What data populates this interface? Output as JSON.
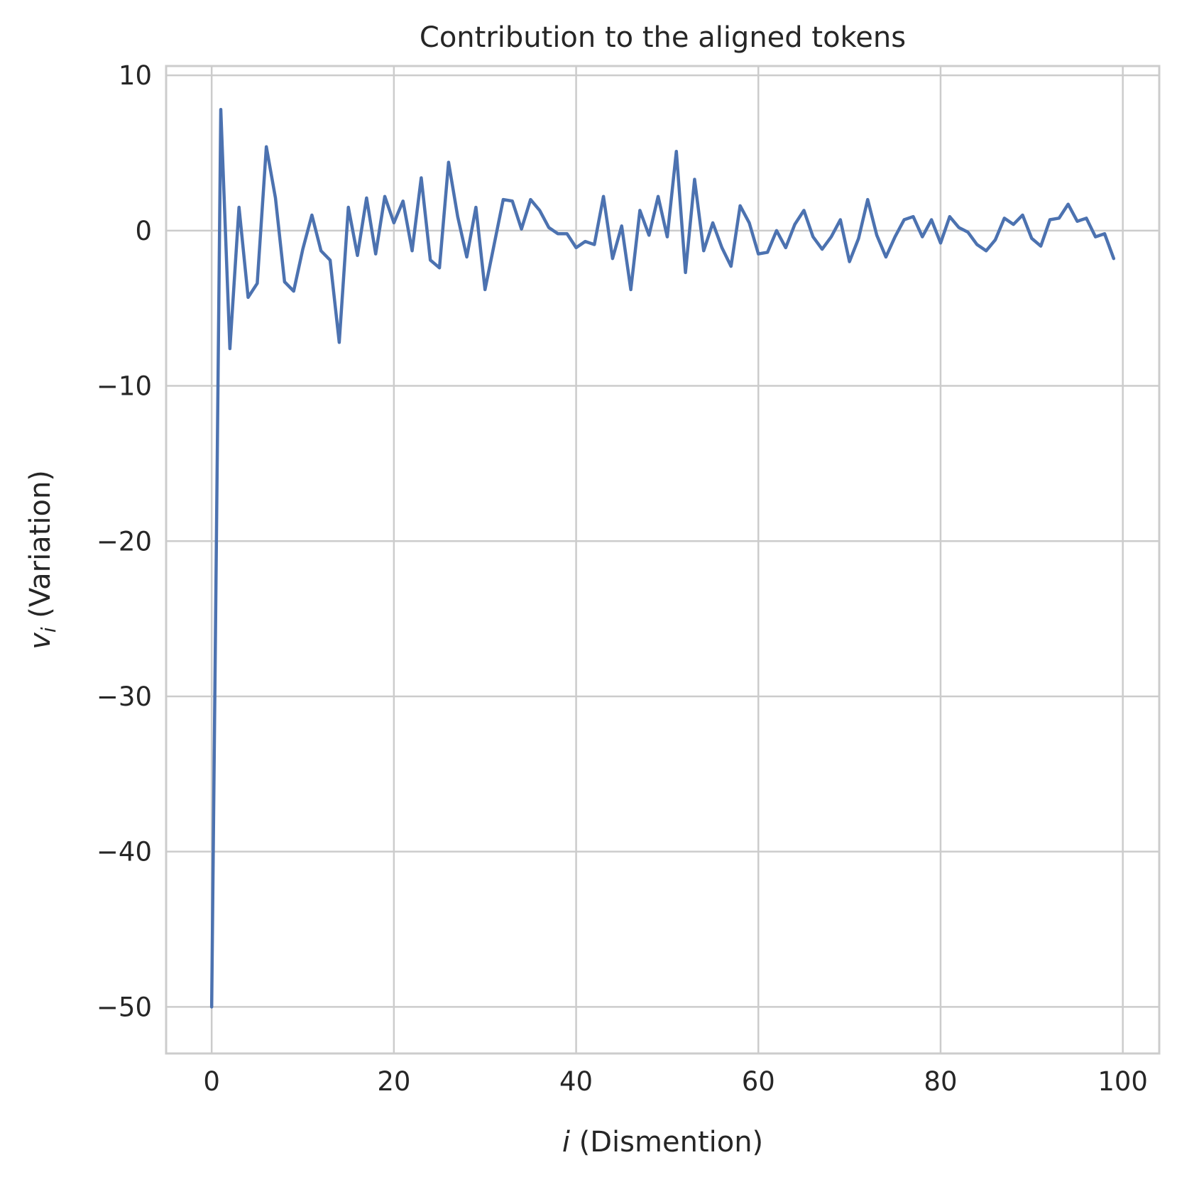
{
  "chart_data": {
    "type": "line",
    "title": "Contribution to the aligned tokens",
    "xlabel_var": "i",
    "xlabel_text": " (Dismention)",
    "ylabel_var": "v",
    "ylabel_sub": "i",
    "ylabel_text": " (Variation)",
    "xlim": [
      -5,
      104
    ],
    "ylim": [
      -53,
      10.6
    ],
    "xticks": [
      0,
      20,
      40,
      60,
      80,
      100
    ],
    "xtick_labels": [
      "0",
      "20",
      "40",
      "60",
      "80",
      "100"
    ],
    "yticks": [
      10,
      0,
      -10,
      -20,
      -30,
      -40,
      -50
    ],
    "ytick_labels": [
      "10",
      "0",
      "−10",
      "−20",
      "−30",
      "−40",
      "−50"
    ],
    "grid": true,
    "series": [
      {
        "color": "#4c72b0",
        "x": [
          0,
          1,
          2,
          3,
          4,
          5,
          6,
          7,
          8,
          9,
          10,
          11,
          12,
          13,
          14,
          15,
          16,
          17,
          18,
          19,
          20,
          21,
          22,
          23,
          24,
          25,
          26,
          27,
          28,
          29,
          30,
          31,
          32,
          33,
          34,
          35,
          36,
          37,
          38,
          39,
          40,
          41,
          42,
          43,
          44,
          45,
          46,
          47,
          48,
          49,
          50,
          51,
          52,
          53,
          54,
          55,
          56,
          57,
          58,
          59,
          60,
          61,
          62,
          63,
          64,
          65,
          66,
          67,
          68,
          69,
          70,
          71,
          72,
          73,
          74,
          75,
          76,
          77,
          78,
          79,
          80,
          81,
          82,
          83,
          84,
          85,
          86,
          87,
          88,
          89,
          90,
          91,
          92,
          93,
          94,
          95,
          96,
          97,
          98,
          99
        ],
        "y": [
          -50,
          7.8,
          -7.6,
          1.5,
          -4.3,
          -3.4,
          5.4,
          2.1,
          -3.3,
          -3.9,
          -1.2,
          1.0,
          -1.3,
          -1.9,
          -7.2,
          1.5,
          -1.6,
          2.1,
          -1.5,
          2.2,
          0.5,
          1.9,
          -1.3,
          3.4,
          -1.9,
          -2.4,
          4.4,
          0.9,
          -1.7,
          1.5,
          -3.8,
          -0.9,
          2.0,
          1.9,
          0.1,
          2.0,
          1.3,
          0.2,
          -0.2,
          -0.2,
          -1.1,
          -0.7,
          -0.9,
          2.2,
          -1.8,
          0.3,
          -3.8,
          1.3,
          -0.3,
          2.2,
          -0.4,
          5.1,
          -2.7,
          3.3,
          -1.3,
          0.5,
          -1.1,
          -2.3,
          1.6,
          0.5,
          -1.5,
          -1.4,
          0.0,
          -1.1,
          0.4,
          1.3,
          -0.4,
          -1.2,
          -0.4,
          0.7,
          -2.0,
          -0.5,
          2.0,
          -0.3,
          -1.7,
          -0.4,
          0.7,
          0.9,
          -0.4,
          0.7,
          -0.8,
          0.9,
          0.2,
          -0.1,
          -0.9,
          -1.3,
          -0.6,
          0.8,
          0.4,
          1.0,
          -0.5,
          -1.0,
          0.7,
          0.8,
          1.7,
          0.6,
          0.8,
          -0.4,
          -0.2,
          -1.8
        ]
      }
    ]
  }
}
